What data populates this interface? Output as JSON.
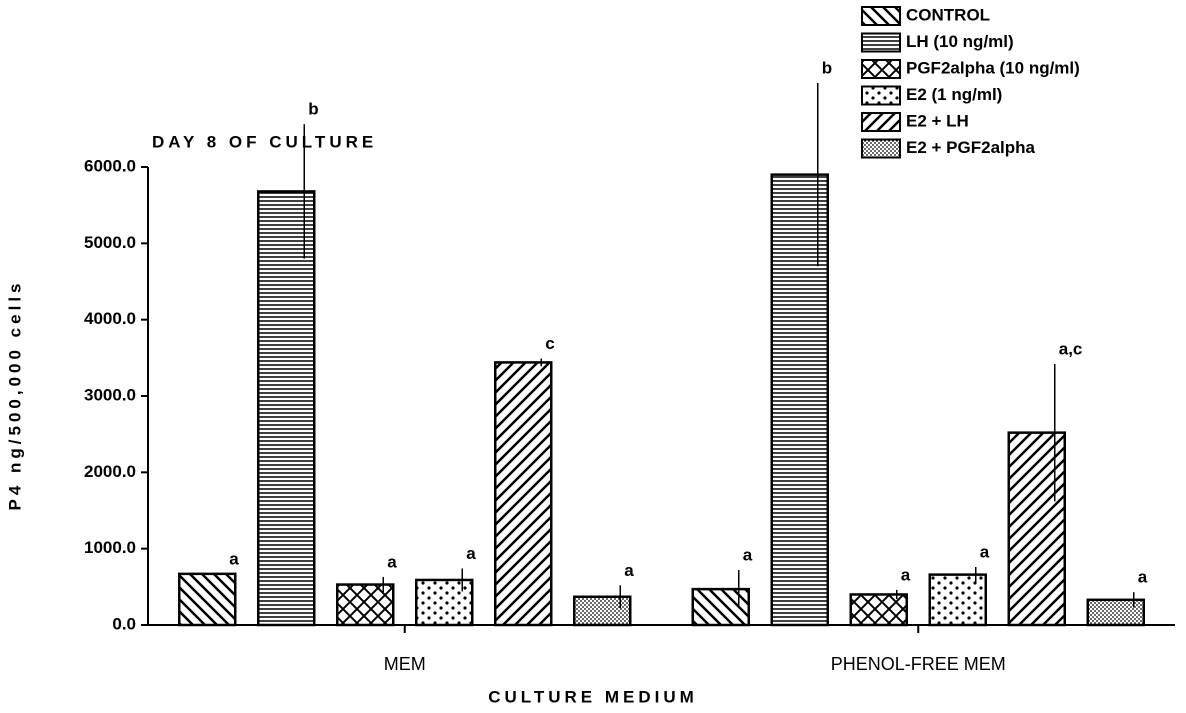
{
  "chart_data": {
    "type": "bar",
    "title": "DAY 8 OF CULTURE",
    "x_label": "CULTURE MEDIUM",
    "y_label": "P4 ng/500,000 cells",
    "categories": [
      "MEM",
      "PHENOL-FREE MEM"
    ],
    "ylim": [
      0,
      6000
    ],
    "yticks": [
      {
        "value": 0,
        "label": "0.0"
      },
      {
        "value": 1000,
        "label": "1000.0"
      },
      {
        "value": 2000,
        "label": "2000.0"
      },
      {
        "value": 3000,
        "label": "3000.0"
      },
      {
        "value": 4000,
        "label": "4000.0"
      },
      {
        "value": 5000,
        "label": "5000.0"
      },
      {
        "value": 6000,
        "label": "6000.0"
      }
    ],
    "series": [
      {
        "name": "CONTROL",
        "color": "#000000",
        "pattern": "backslash",
        "values": [
          670,
          470
        ],
        "errors": [
          0,
          250
        ],
        "letters": [
          "a",
          "a"
        ]
      },
      {
        "name": "LH (10 ng/ml)",
        "color": "#000000",
        "pattern": "horizontal",
        "values": [
          5680,
          5900
        ],
        "errors": [
          880,
          1200
        ],
        "letters": [
          "b",
          "b"
        ]
      },
      {
        "name": "PGF2alpha (10 ng/ml)",
        "color": "#000000",
        "pattern": "crosshatch",
        "values": [
          530,
          400
        ],
        "errors": [
          100,
          60
        ],
        "letters": [
          "a",
          "a"
        ]
      },
      {
        "name": "E2 (1 ng/ml)",
        "color": "#000000",
        "pattern": "dots",
        "values": [
          590,
          660
        ],
        "errors": [
          150,
          100
        ],
        "letters": [
          "a",
          "a"
        ]
      },
      {
        "name": "E2 + LH",
        "color": "#000000",
        "pattern": "slash",
        "values": [
          3440,
          2520
        ],
        "errors": [
          50,
          900
        ],
        "letters": [
          "c",
          "a,c"
        ]
      },
      {
        "name": "E2 + PGF2alpha",
        "color": "#000000",
        "pattern": "fine-dots",
        "values": [
          370,
          330
        ],
        "errors": [
          150,
          100
        ],
        "letters": [
          "a",
          "a"
        ]
      }
    ]
  }
}
